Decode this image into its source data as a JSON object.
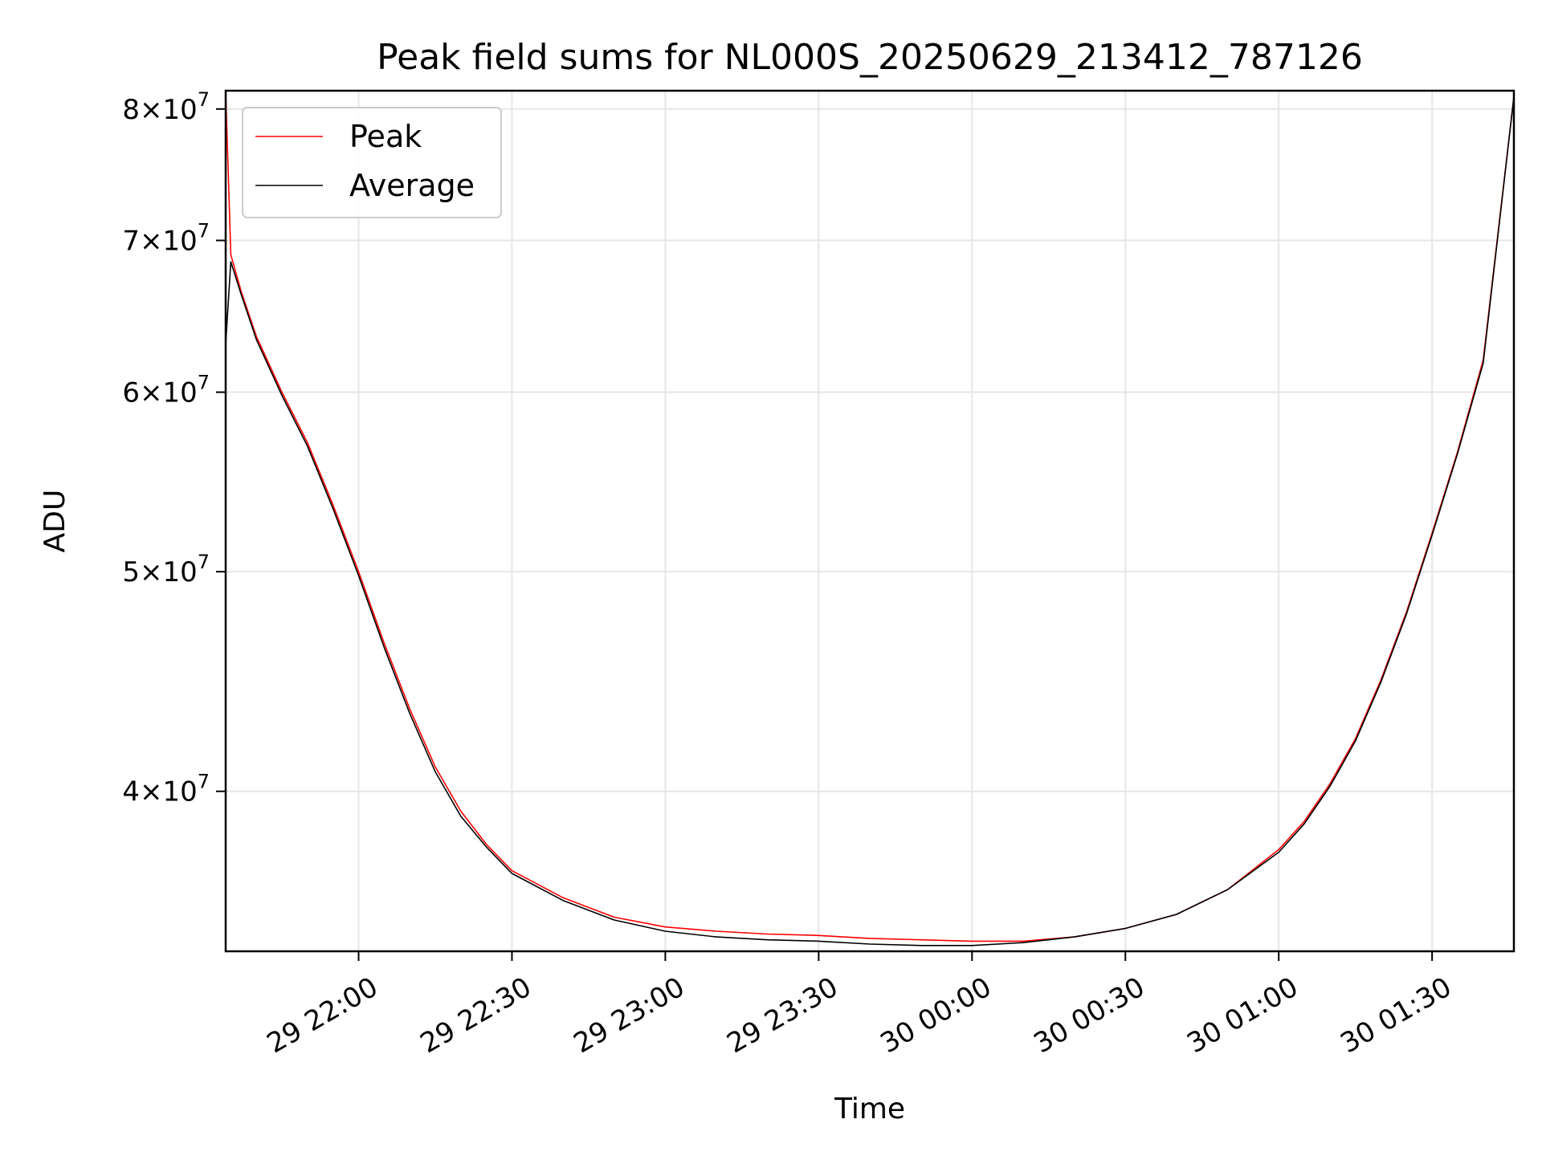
{
  "chart_data": {
    "type": "line",
    "title": "Peak field sums for NL000S_20250629_213412_787126",
    "xlabel": "Time",
    "ylabel": "ADU",
    "y_scale": "log",
    "ylim": [
      34000000,
      81500000
    ],
    "xlim": [
      "2025-06-29 21:34",
      "2025-06-30 01:46"
    ],
    "grid": true,
    "legend_position": "top-left",
    "x_ticks": [
      {
        "value": "2025-06-29 22:00",
        "label": "29 22:00"
      },
      {
        "value": "2025-06-29 22:30",
        "label": "29 22:30"
      },
      {
        "value": "2025-06-29 23:00",
        "label": "29 23:00"
      },
      {
        "value": "2025-06-29 23:30",
        "label": "29 23:30"
      },
      {
        "value": "2025-06-30 00:00",
        "label": "30 00:00"
      },
      {
        "value": "2025-06-30 00:30",
        "label": "30 00:30"
      },
      {
        "value": "2025-06-30 01:00",
        "label": "30 01:00"
      },
      {
        "value": "2025-06-30 01:30",
        "label": "30 01:30"
      }
    ],
    "y_ticks": [
      {
        "value": 40000000,
        "mantissa": "4",
        "exponent": "7"
      },
      {
        "value": 50000000,
        "mantissa": "5",
        "exponent": "7"
      },
      {
        "value": 60000000,
        "mantissa": "6",
        "exponent": "7"
      },
      {
        "value": 70000000,
        "mantissa": "7",
        "exponent": "7"
      },
      {
        "value": 80000000,
        "mantissa": "8",
        "exponent": "7"
      }
    ],
    "series": [
      {
        "name": "Peak",
        "color": "#ff0000",
        "x": [
          "2025-06-29 21:34",
          "2025-06-29 21:35",
          "2025-06-29 21:37",
          "2025-06-29 21:40",
          "2025-06-29 21:45",
          "2025-06-29 21:50",
          "2025-06-29 21:55",
          "2025-06-29 22:00",
          "2025-06-29 22:05",
          "2025-06-29 22:10",
          "2025-06-29 22:15",
          "2025-06-29 22:20",
          "2025-06-29 22:25",
          "2025-06-29 22:30",
          "2025-06-29 22:40",
          "2025-06-29 22:50",
          "2025-06-29 23:00",
          "2025-06-29 23:10",
          "2025-06-29 23:20",
          "2025-06-29 23:30",
          "2025-06-29 23:40",
          "2025-06-29 23:50",
          "2025-06-30 00:00",
          "2025-06-30 00:10",
          "2025-06-30 00:20",
          "2025-06-30 00:30",
          "2025-06-30 00:40",
          "2025-06-30 00:50",
          "2025-06-30 01:00",
          "2025-06-30 01:05",
          "2025-06-30 01:10",
          "2025-06-30 01:15",
          "2025-06-30 01:20",
          "2025-06-30 01:25",
          "2025-06-30 01:30",
          "2025-06-30 01:35",
          "2025-06-30 01:40",
          "2025-06-30 01:46"
        ],
        "values": [
          81500000,
          69000000,
          66500000,
          63500000,
          60000000,
          57000000,
          53500000,
          50000000,
          46500000,
          43500000,
          41000000,
          39200000,
          37900000,
          36900000,
          35900000,
          35200000,
          34850000,
          34700000,
          34600000,
          34550000,
          34450000,
          34400000,
          34350000,
          34350000,
          34500000,
          34800000,
          35300000,
          36200000,
          37700000,
          38800000,
          40300000,
          42200000,
          44800000,
          48000000,
          52000000,
          56500000,
          62000000,
          81000000
        ]
      },
      {
        "name": "Average",
        "color": "#000000",
        "x": [
          "2025-06-29 21:34",
          "2025-06-29 21:35",
          "2025-06-29 21:37",
          "2025-06-29 21:40",
          "2025-06-29 21:45",
          "2025-06-29 21:50",
          "2025-06-29 21:55",
          "2025-06-29 22:00",
          "2025-06-29 22:05",
          "2025-06-29 22:10",
          "2025-06-29 22:15",
          "2025-06-29 22:20",
          "2025-06-29 22:25",
          "2025-06-29 22:30",
          "2025-06-29 22:40",
          "2025-06-29 22:50",
          "2025-06-29 23:00",
          "2025-06-29 23:10",
          "2025-06-29 23:20",
          "2025-06-29 23:30",
          "2025-06-29 23:40",
          "2025-06-29 23:50",
          "2025-06-30 00:00",
          "2025-06-30 00:10",
          "2025-06-30 00:20",
          "2025-06-30 00:30",
          "2025-06-30 00:40",
          "2025-06-30 00:50",
          "2025-06-30 01:00",
          "2025-06-30 01:05",
          "2025-06-30 01:10",
          "2025-06-30 01:15",
          "2025-06-30 01:20",
          "2025-06-30 01:25",
          "2025-06-30 01:30",
          "2025-06-30 01:35",
          "2025-06-30 01:40",
          "2025-06-30 01:46"
        ],
        "values": [
          63000000,
          68500000,
          66300000,
          63300000,
          59800000,
          56800000,
          53300000,
          49800000,
          46300000,
          43300000,
          40800000,
          39000000,
          37800000,
          36800000,
          35800000,
          35100000,
          34700000,
          34500000,
          34400000,
          34350000,
          34250000,
          34200000,
          34200000,
          34300000,
          34500000,
          34800000,
          35300000,
          36200000,
          37600000,
          38700000,
          40200000,
          42100000,
          44700000,
          47900000,
          51900000,
          56400000,
          61800000,
          81000000
        ]
      }
    ]
  }
}
